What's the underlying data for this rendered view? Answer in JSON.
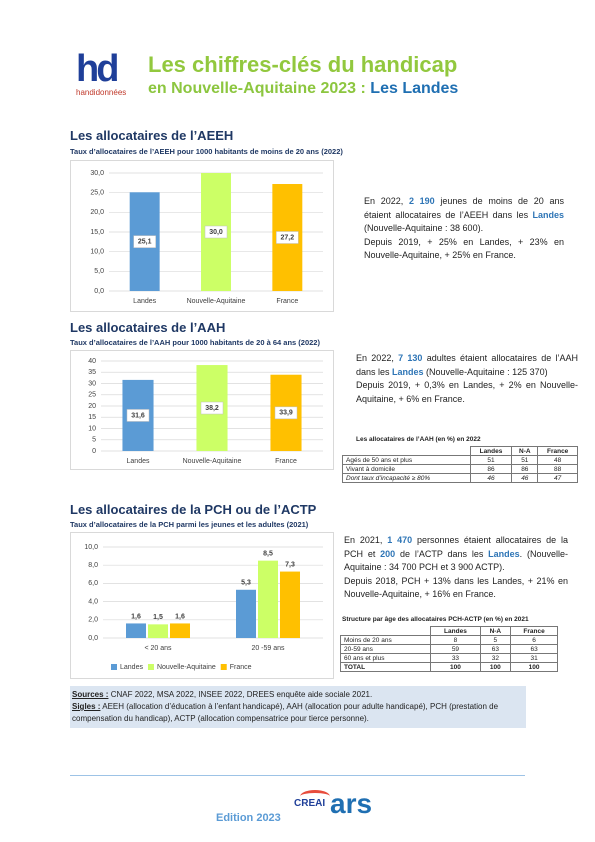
{
  "header": {
    "logo_mark": "hd",
    "logo_text": "handidonnées",
    "title": "Les chiffres-clés du handicap",
    "subtitle": "en Nouvelle-Aquitaine 2023 :",
    "subtitle_highlight": "Les Landes"
  },
  "sections": [
    {
      "heading": "Les allocataires de l’AEEH"
    },
    {
      "heading": "Les allocataires de l’AAH"
    },
    {
      "heading": "Les allocataires de la PCH ou de l’ACTP"
    }
  ],
  "chart_data": [
    {
      "type": "bar",
      "title": "Taux d’allocataires de l’AEEH pour 1000 habitants de moins de 20 ans (2022)",
      "categories": [
        "Landes",
        "Nouvelle-Aquitaine",
        "France"
      ],
      "values": [
        25.1,
        30.0,
        27.2
      ],
      "value_labels": [
        "25,1",
        "30,0",
        "27,2"
      ],
      "colors": [
        "#5b9bd5",
        "#ccff66",
        "#ffc000"
      ],
      "ylim": [
        0,
        30
      ],
      "yticks": [
        {
          "value": 0,
          "label": "0,0"
        },
        {
          "value": 5,
          "label": "5,0"
        },
        {
          "value": 10,
          "label": "10,0"
        },
        {
          "value": 15,
          "label": "15,0"
        },
        {
          "value": 20,
          "label": "20,0"
        },
        {
          "value": 25,
          "label": "25,0"
        },
        {
          "value": 30,
          "label": "30,0"
        }
      ],
      "grid": true,
      "label_position": "center"
    },
    {
      "type": "bar",
      "title": "Taux d’allocataires de l’AAH pour 1000 habitants de 20 à 64 ans (2022)",
      "categories": [
        "Landes",
        "Nouvelle-Aquitaine",
        "France"
      ],
      "values": [
        31.6,
        38.2,
        33.9
      ],
      "value_labels": [
        "31,6",
        "38,2",
        "33,9"
      ],
      "colors": [
        "#5b9bd5",
        "#ccff66",
        "#ffc000"
      ],
      "ylim": [
        0,
        40
      ],
      "yticks": [
        0,
        5,
        10,
        15,
        20,
        25,
        30,
        35,
        40
      ],
      "grid": true,
      "label_position": "center"
    },
    {
      "type": "grouped-bar",
      "title": "Taux d’allocataires de la PCH parmi les jeunes et les adultes (2021)",
      "categories": [
        "< 20 ans",
        "20 -59 ans"
      ],
      "series": [
        {
          "name": "Landes",
          "color": "#5b9bd5",
          "values": [
            1.6,
            5.3
          ],
          "value_labels": [
            "1,6",
            "5,3"
          ]
        },
        {
          "name": "Nouvelle-Aquitaine",
          "color": "#ccff66",
          "values": [
            1.5,
            8.5
          ],
          "value_labels": [
            "1,5",
            "8,5"
          ]
        },
        {
          "name": "France",
          "color": "#ffc000",
          "values": [
            1.6,
            7.3
          ],
          "value_labels": [
            "1,6",
            "7,3"
          ]
        }
      ],
      "ylim": [
        0,
        10
      ],
      "yticks": [
        {
          "value": 0,
          "label": "0,0"
        },
        {
          "value": 2,
          "label": "2,0"
        },
        {
          "value": 4,
          "label": "4,0"
        },
        {
          "value": 6,
          "label": "6,0"
        },
        {
          "value": 8,
          "label": "8,0"
        },
        {
          "value": 10,
          "label": "10,0"
        }
      ],
      "grid": true,
      "label_position": "above",
      "legend": "bottom"
    }
  ],
  "texts": [
    [
      [
        "En 2022, ",
        {
          "text": "2 190",
          "em": true
        },
        " jeunes de moins de 20 ans étaient allocataires de l’AEEH dans les ",
        {
          "text": "Landes",
          "em": true
        },
        " (Nouvelle-Aquitaine : 38 600)."
      ],
      [
        "Depuis 2019, + 25% en Landes, + 23% en Nouvelle-Aquitaine, + 25% en France."
      ]
    ],
    [
      [
        "En 2022, ",
        {
          "text": "7 130",
          "em": true
        },
        " adultes étaient allocataires de l’AAH dans les ",
        {
          "text": "Landes",
          "em": true
        },
        " (Nouvelle-Aquitaine : 125 370)"
      ],
      [
        "Depuis 2019, + 0,3% en Landes, + 2% en Nouvelle-Aquitaine, + 6% en France."
      ]
    ],
    [
      [
        "En 2021, ",
        {
          "text": "1 470",
          "em": true
        },
        " personnes étaient allocataires de la PCH et ",
        {
          "text": "200",
          "em": true
        },
        " de l’ACTP dans les ",
        {
          "text": "Landes",
          "em": true
        },
        ". (Nouvelle-Aquitaine : 34 700 PCH et 3 900 ACTP)."
      ],
      [
        "Depuis 2018, PCH + 13% dans les Landes, + 21% en Nouvelle-Aquitaine, + 16% en France."
      ]
    ]
  ],
  "tables": [
    {
      "title": "Les allocataires de l’AAH (en %) en 2022",
      "columns": [
        "Landes",
        "N-A",
        "France"
      ],
      "rows": [
        [
          "Agés de 50 ans et plus",
          51,
          51,
          48
        ],
        [
          "Vivant à domicile",
          86,
          86,
          88
        ],
        [
          "Dont taux d’incapacité ≥ 80%",
          46,
          46,
          47
        ]
      ]
    },
    {
      "title": "Structure par âge des allocataires PCH-ACTP (en %) en 2021",
      "columns": [
        "Landes",
        "N-A",
        "France"
      ],
      "rows": [
        [
          "Moins de 20 ans",
          8,
          5,
          6
        ],
        [
          "20-59 ans",
          59,
          63,
          63
        ],
        [
          "60 ans et plus",
          33,
          32,
          31
        ],
        [
          "TOTAL",
          100,
          100,
          100
        ]
      ]
    }
  ],
  "sources": {
    "label": "Sources :",
    "text": " CNAF 2022, MSA 2022, INSEE 2022, DREES enquête aide sociale 2021."
  },
  "acronyms": {
    "label": "Sigles :",
    "text": " AEEH (allocation d’éducation à l’enfant handicapé), AAH (allocation pour adulte handicapé), PCH (prestation de compensation du handicap), ACTP (allocation compensatrice pour tierce personne)."
  },
  "footer": {
    "edition": "Edition 2023",
    "logo_creai": "CREAI",
    "logo_ars": "ars"
  }
}
